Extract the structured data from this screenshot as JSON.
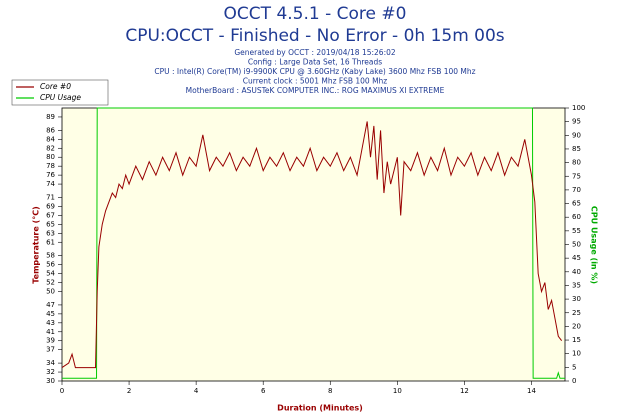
{
  "chart_data": {
    "type": "line",
    "title": "OCCT 4.5.1 - Core #0",
    "subtitle": "CPU:OCCT - Finished - No Error - 0h 15m 00s",
    "info": [
      "Generated by OCCT : 2019/04/18 15:26:02",
      "Config : Large Data Set, 16 Threads",
      "CPU : Intel(R) Core(TM) i9-9900K CPU @ 3.60GHz (Kaby Lake) 3600 Mhz FSB 100 Mhz",
      "Current clock : 5001 Mhz FSB 100 Mhz",
      "MotherBoard : ASUSTeK COMPUTER INC.: ROG MAXIMUS XI EXTREME"
    ],
    "xlabel": "Duration (Minutes)",
    "ylabel": "Temperature (°C)",
    "y2label": "CPU Usage (in %)",
    "xlim": [
      0,
      15
    ],
    "xticks": [
      0,
      2,
      4,
      6,
      8,
      10,
      12,
      14
    ],
    "ylim": [
      30,
      91
    ],
    "yticks": [
      30,
      32,
      34,
      37,
      39,
      41,
      43,
      45,
      47,
      50,
      52,
      54,
      56,
      58,
      61,
      63,
      65,
      67,
      69,
      71,
      74,
      76,
      78,
      80,
      82,
      84,
      86,
      89
    ],
    "y2lim": [
      0,
      100
    ],
    "y2ticks": [
      0,
      5,
      10,
      15,
      20,
      25,
      30,
      35,
      40,
      45,
      50,
      55,
      60,
      65,
      70,
      75,
      80,
      85,
      90,
      95,
      100
    ],
    "legend": "top-left",
    "series": [
      {
        "name": "Core #0",
        "color": "#990000",
        "x": [
          0,
          0.2,
          0.3,
          0.4,
          0.6,
          0.8,
          1.0,
          1.05,
          1.1,
          1.2,
          1.3,
          1.4,
          1.5,
          1.6,
          1.7,
          1.8,
          1.9,
          2.0,
          2.2,
          2.4,
          2.6,
          2.8,
          3.0,
          3.2,
          3.4,
          3.6,
          3.8,
          4.0,
          4.2,
          4.4,
          4.6,
          4.8,
          5.0,
          5.2,
          5.4,
          5.6,
          5.8,
          6.0,
          6.2,
          6.4,
          6.6,
          6.8,
          7.0,
          7.2,
          7.4,
          7.6,
          7.8,
          8.0,
          8.2,
          8.4,
          8.6,
          8.8,
          9.0,
          9.1,
          9.2,
          9.3,
          9.4,
          9.5,
          9.6,
          9.7,
          9.8,
          10.0,
          10.1,
          10.2,
          10.4,
          10.6,
          10.8,
          11.0,
          11.2,
          11.4,
          11.6,
          11.8,
          12.0,
          12.2,
          12.4,
          12.6,
          12.8,
          13.0,
          13.2,
          13.4,
          13.6,
          13.8,
          14.0,
          14.1,
          14.2,
          14.3,
          14.4,
          14.5,
          14.6,
          14.7,
          14.8,
          14.9
        ],
        "values": [
          33,
          34,
          36,
          33,
          33,
          33,
          33,
          50,
          60,
          65,
          68,
          70,
          72,
          71,
          74,
          73,
          76,
          74,
          78,
          75,
          79,
          76,
          80,
          77,
          81,
          76,
          80,
          78,
          85,
          77,
          80,
          78,
          81,
          77,
          80,
          78,
          82,
          77,
          80,
          78,
          81,
          77,
          80,
          78,
          82,
          77,
          80,
          78,
          81,
          77,
          80,
          76,
          84,
          88,
          80,
          87,
          75,
          86,
          72,
          79,
          74,
          80,
          67,
          79,
          77,
          81,
          76,
          80,
          77,
          82,
          76,
          80,
          78,
          81,
          76,
          80,
          77,
          81,
          76,
          80,
          78,
          84,
          76,
          70,
          54,
          50,
          52,
          46,
          48,
          44,
          40,
          39
        ]
      },
      {
        "name": "CPU Usage",
        "color": "#00cc00",
        "axis": "y2",
        "x": [
          0,
          1.03,
          1.05,
          14.03,
          14.05,
          14.75,
          14.8,
          14.85,
          15
        ],
        "values": [
          1,
          1,
          100,
          100,
          1,
          1,
          3,
          1,
          1
        ]
      }
    ]
  }
}
